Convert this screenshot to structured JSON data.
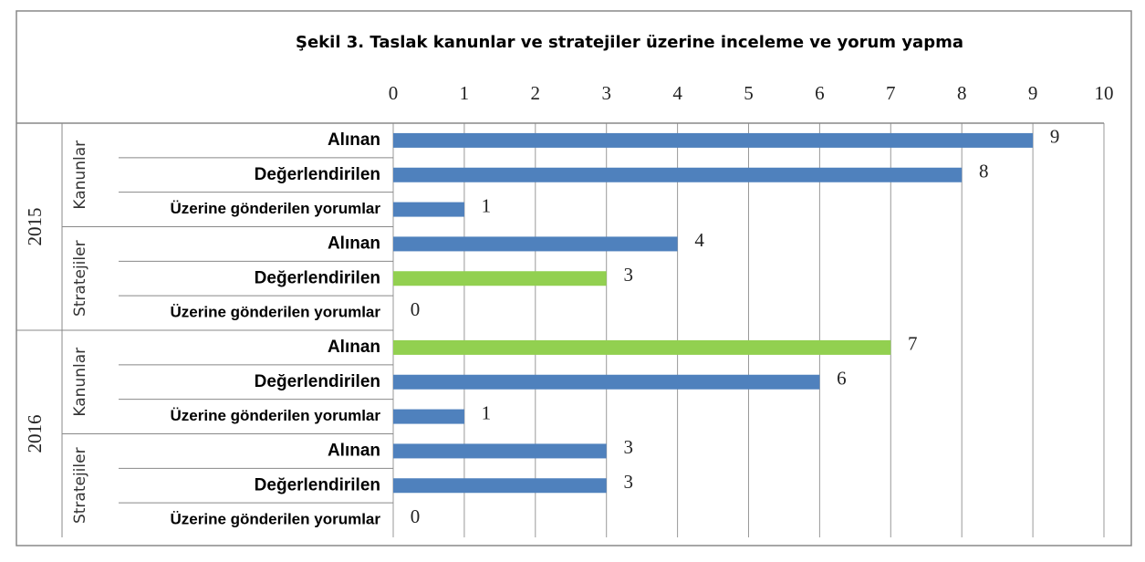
{
  "chart_data": {
    "type": "bar",
    "orientation": "horizontal",
    "title": "Şekil 3. Taslak kanunlar ve stratejiler üzerine inceleme ve yorum yapma",
    "groups": [
      {
        "label": "2015",
        "subgroups": [
          "Kanunlar",
          "Stratejiler"
        ]
      },
      {
        "label": "2016",
        "subgroups": [
          "Kanunlar",
          "Stratejiler"
        ]
      }
    ],
    "categories": [
      "Alınan",
      "Değerlendirilen",
      "Üzerine gönderilen yorumlar",
      "Alınan",
      "Değerlendirilen",
      "Üzerine gönderilen yorumlar",
      "Alınan",
      "Değerlendirilen",
      "Üzerine gönderilen yorumlar",
      "Alınan",
      "Değerlendirilen",
      "Üzerine gönderilen yorumlar"
    ],
    "values": [
      9,
      8,
      1,
      4,
      3,
      0,
      7,
      6,
      1,
      3,
      3,
      0
    ],
    "colors": [
      "#4f81bd",
      "#4f81bd",
      "#4f81bd",
      "#4f81bd",
      "#92d050",
      "#4f81bd",
      "#92d050",
      "#4f81bd",
      "#4f81bd",
      "#4f81bd",
      "#4f81bd",
      "#4f81bd"
    ],
    "xlim": [
      0,
      10
    ],
    "xticks": [
      0,
      1,
      2,
      3,
      4,
      5,
      6,
      7,
      8,
      9,
      10
    ],
    "grid": true
  }
}
